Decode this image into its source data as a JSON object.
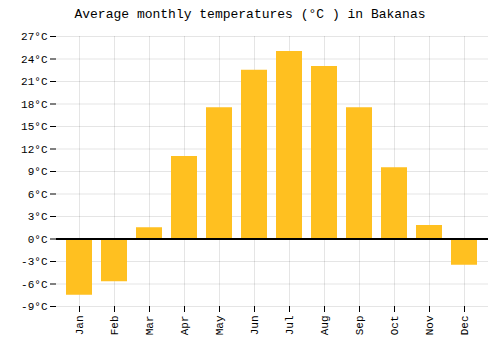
{
  "chart_data": {
    "type": "bar",
    "title": "Average monthly temperatures (°C ) in Bakanas",
    "categories": [
      "Jan",
      "Feb",
      "Mar",
      "Apr",
      "May",
      "Jun",
      "Jul",
      "Aug",
      "Sep",
      "Oct",
      "Nov",
      "Dec"
    ],
    "values": [
      -7.5,
      -5.7,
      1.5,
      11.0,
      17.5,
      22.5,
      25.0,
      23.0,
      17.5,
      9.5,
      1.8,
      -3.5
    ],
    "color": "#FFC020",
    "ylim": [
      -9,
      27
    ],
    "yticks": [
      {
        "value": -9,
        "label": "-9°C"
      },
      {
        "value": -6,
        "label": "-6°C"
      },
      {
        "value": -3,
        "label": "-3°C"
      },
      {
        "value": 0,
        "label": "0°C"
      },
      {
        "value": 3,
        "label": "3°C"
      },
      {
        "value": 6,
        "label": "6°C"
      },
      {
        "value": 9,
        "label": "9°C"
      },
      {
        "value": 12,
        "label": "12°C"
      },
      {
        "value": 15,
        "label": "15°C"
      },
      {
        "value": 18,
        "label": "18°C"
      },
      {
        "value": 21,
        "label": "21°C"
      },
      {
        "value": 24,
        "label": "24°C"
      },
      {
        "value": 27,
        "label": "27°C"
      }
    ],
    "grid": true
  }
}
